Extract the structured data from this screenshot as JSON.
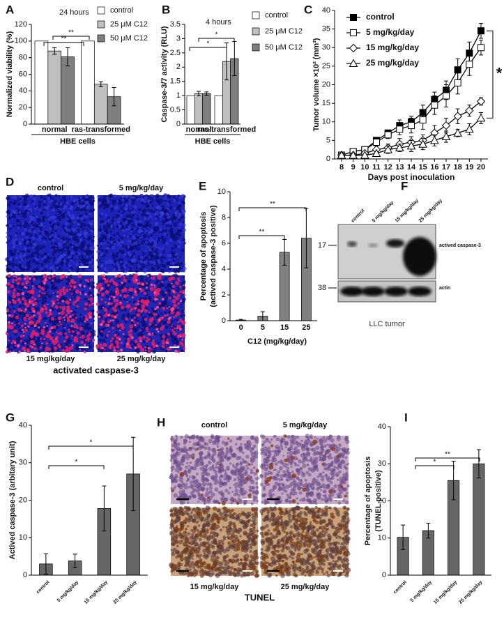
{
  "chart_data": [
    {
      "type": "bar",
      "label": "A",
      "title": "24 hours",
      "ylabel": [
        "Normalized viability (%)"
      ],
      "categories": [
        "normal",
        "ras-transformed"
      ],
      "group_label": "HBE cells",
      "series": [
        {
          "name": "control",
          "color": "#ffffff",
          "values": [
            100,
            100
          ]
        },
        {
          "name": "25 μM C12",
          "color": "#c0c0c0",
          "values": [
            88,
            48
          ],
          "errors": [
            4,
            3
          ]
        },
        {
          "name": "50 μM C12",
          "color": "#7f7f7f",
          "values": [
            81,
            33
          ],
          "errors": [
            11,
            11
          ]
        }
      ],
      "ylim": [
        0,
        120
      ],
      "yticks": [
        0,
        20,
        40,
        60,
        80,
        100,
        120
      ],
      "annotations": [
        "**",
        "**"
      ]
    },
    {
      "type": "bar",
      "label": "B",
      "title": "4 hours",
      "ylabel": [
        "Caspase-3/7 activity (RLU)"
      ],
      "categories": [
        "normal",
        "ras-transformed"
      ],
      "group_label": "HBE cells",
      "series": [
        {
          "name": "control",
          "color": "#ffffff",
          "values": [
            1,
            1
          ]
        },
        {
          "name": "25 μM C12",
          "color": "#c0c0c0",
          "values": [
            1.07,
            2.2
          ],
          "errors": [
            0.08,
            0.65
          ]
        },
        {
          "name": "50 μM C12",
          "color": "#7f7f7f",
          "values": [
            1.07,
            2.3
          ],
          "errors": [
            0.06,
            0.6
          ]
        }
      ],
      "ylim": [
        0,
        3.5
      ],
      "yticks": [
        0,
        0.5,
        1,
        1.5,
        2,
        2.5,
        3,
        3.5
      ],
      "annotations": [
        "*",
        "*"
      ]
    },
    {
      "type": "line",
      "label": "C",
      "ylabel": [
        "Tumor volume ×10² (mm³)"
      ],
      "xlabel": "Days post inoculation",
      "x": [
        8,
        9,
        10,
        11,
        12,
        13,
        14,
        15,
        16,
        17,
        18,
        19,
        20
      ],
      "series": [
        {
          "name": "control",
          "color": "#000000",
          "marker": "square",
          "values": [
            1,
            2,
            2.5,
            5,
            7,
            9,
            10,
            12.5,
            16,
            18.5,
            24,
            28.5,
            34.5
          ],
          "errors": [
            0.3,
            0.5,
            0.5,
            0.8,
            0.8,
            1.5,
            1.5,
            2,
            2,
            2.5,
            3,
            3,
            2
          ]
        },
        {
          "name": "5 mg/kg/day",
          "color": "#ffffff",
          "marker": "square",
          "values": [
            1,
            2,
            2.5,
            4.5,
            6.5,
            8,
            9,
            10.5,
            14.5,
            17,
            20.5,
            25.5,
            30
          ],
          "errors": [
            0.3,
            0.5,
            0.5,
            1,
            1,
            1.5,
            2,
            2.5,
            2.5,
            3,
            3,
            3,
            2
          ]
        },
        {
          "name": "15 mg/kg/day",
          "color": "#ffffff",
          "marker": "diamond",
          "values": [
            1,
            1,
            1.5,
            2.5,
            3,
            4,
            4.5,
            5,
            7,
            9,
            11.5,
            13,
            15.5
          ],
          "errors": [
            0.3,
            0.3,
            0.5,
            1,
            1,
            1.5,
            1.5,
            1.5,
            2,
            2,
            2,
            1.5,
            1
          ]
        },
        {
          "name": "25 mg/kg/day",
          "color": "#ffffff",
          "marker": "triangle",
          "values": [
            1,
            1,
            1,
            1.5,
            2.5,
            3,
            3.5,
            4,
            5,
            6,
            7,
            8,
            11
          ],
          "errors": [
            0.3,
            0.3,
            0.3,
            0.5,
            1,
            1,
            1.5,
            1.5,
            1.5,
            1.5,
            1,
            1.5,
            1.5
          ]
        }
      ],
      "xlim": [
        7.4,
        20.6
      ],
      "xticks": [
        8,
        9,
        10,
        11,
        12,
        13,
        14,
        15,
        16,
        17,
        18,
        19,
        20
      ],
      "ylim": [
        0,
        40
      ],
      "yticks": [
        0,
        5,
        10,
        15,
        20,
        25,
        30,
        35,
        40
      ],
      "annotations": [
        "*"
      ]
    },
    {
      "type": "bar",
      "label": "E",
      "ylabel": [
        "Percentage of apoptosis",
        "(actived caspase-3 positive)"
      ],
      "xlabel": "C12 (mg/kg/day)",
      "categories": [
        "0",
        "5",
        "15",
        "25"
      ],
      "values": [
        0.05,
        0.35,
        5.3,
        6.4
      ],
      "errors": [
        0.05,
        0.35,
        1,
        2.3
      ],
      "color": "#808080",
      "ylim": [
        0,
        10
      ],
      "yticks": [
        0,
        2,
        4,
        6,
        8,
        10
      ],
      "annotations": [
        "**",
        "**"
      ]
    },
    {
      "type": "bar",
      "label": "G",
      "ylabel": [
        "Actived caspase-3 (arbitary unit)"
      ],
      "categories": [
        "control",
        "5 mg/kg/day",
        "15 mg/kg/day",
        "25 mg/kg/day"
      ],
      "values": [
        3,
        3.8,
        17.8,
        27
      ],
      "errors": [
        2.7,
        1.8,
        6,
        9.8
      ],
      "color": "#666666",
      "ylim": [
        0,
        40
      ],
      "yticks": [
        0,
        10,
        20,
        30,
        40
      ],
      "annotations": [
        "*",
        "*"
      ]
    },
    {
      "type": "bar",
      "label": "I",
      "ylabel": [
        "Percentage of apoptosis",
        "(TUNEL positive)"
      ],
      "categories": [
        "control",
        "5 mg/kg/day",
        "15 mg/kg/day",
        "25 mg/kg/day"
      ],
      "values": [
        10.2,
        12,
        25.5,
        30
      ],
      "errors": [
        3.3,
        2,
        5.2,
        3.8
      ],
      "color": "#666666",
      "ylim": [
        0,
        40
      ],
      "yticks": [
        0,
        10,
        20,
        30,
        40
      ],
      "annotations": [
        "*",
        "**"
      ]
    }
  ],
  "figures": {
    "D": {
      "label": "D",
      "top_labels": [
        "control",
        "5 mg/kg/day"
      ],
      "bottom_labels": [
        "15 mg/kg/day",
        "25 mg/kg/day"
      ],
      "caption": "activated caspase-3"
    },
    "F": {
      "label": "F",
      "lanes": [
        "control",
        "5 mg/kg/day",
        "15 mg/kg/day",
        "25 mg/kg/day"
      ],
      "markers": [
        "17",
        "38"
      ],
      "bands": [
        "actived caspase-3",
        "actin"
      ],
      "caption": "LLC tumor"
    },
    "H": {
      "label": "H",
      "top_labels": [
        "control",
        "5 mg/kg/day"
      ],
      "bottom_labels": [
        "15 mg/kg/day",
        "25 mg/kg/day"
      ],
      "caption": "TUNEL"
    }
  }
}
